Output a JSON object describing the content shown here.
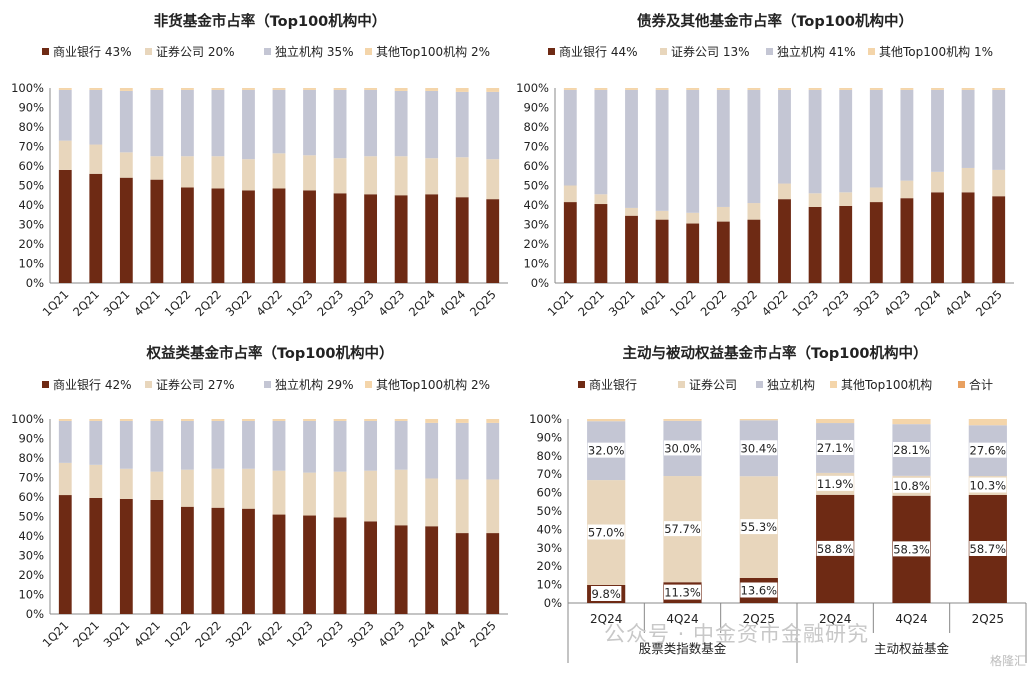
{
  "colors": {
    "commercial_bank": "#6e2a14",
    "securities": "#e8d6bc",
    "independent": "#c4c6d4",
    "other": "#f4d5aa",
    "total": "#e8a060"
  },
  "chart_data": [
    {
      "type": "bar",
      "stacked": true,
      "title": "非货基金市占率（Top100机构中）",
      "legend": [
        "商业银行 43%",
        "证券公司 20%",
        "独立机构 35%",
        "其他Top100机构 2%"
      ],
      "categories": [
        "1Q21",
        "2Q21",
        "3Q21",
        "4Q21",
        "1Q22",
        "2Q22",
        "3Q22",
        "4Q22",
        "1Q23",
        "2Q23",
        "3Q23",
        "4Q23",
        "2Q24",
        "4Q24",
        "2Q25"
      ],
      "yticks": [
        "0%",
        "10%",
        "20%",
        "30%",
        "40%",
        "50%",
        "60%",
        "70%",
        "80%",
        "90%",
        "100%"
      ],
      "ylim": [
        0,
        100
      ],
      "series": [
        {
          "name": "商业银行",
          "values": [
            58,
            56,
            54,
            53,
            49,
            48.5,
            47.5,
            48.5,
            47.5,
            46,
            45.5,
            45,
            45.5,
            44,
            43
          ]
        },
        {
          "name": "证券公司",
          "values": [
            15,
            15,
            13,
            12,
            16,
            16.5,
            16,
            18,
            18,
            18,
            19.5,
            20,
            18.5,
            20.5,
            20.5
          ]
        },
        {
          "name": "独立机构",
          "values": [
            26,
            28,
            31.5,
            34,
            34,
            34,
            35.5,
            32.5,
            33.5,
            35,
            34,
            33.5,
            34.5,
            33.5,
            34.5
          ]
        },
        {
          "name": "其他Top100机构",
          "values": [
            1,
            1,
            1.5,
            1,
            1,
            1,
            1,
            1,
            1,
            1,
            1,
            1.5,
            1.5,
            2,
            2
          ]
        }
      ]
    },
    {
      "type": "bar",
      "stacked": true,
      "title": "债券及其他基金市占率（Top100机构中）",
      "legend": [
        "商业银行 44%",
        "证券公司 13%",
        "独立机构 41%",
        "其他Top100机构 1%"
      ],
      "categories": [
        "1Q21",
        "2Q21",
        "3Q21",
        "4Q21",
        "1Q22",
        "2Q22",
        "3Q22",
        "4Q22",
        "1Q23",
        "2Q23",
        "3Q23",
        "4Q23",
        "2Q24",
        "4Q24",
        "2Q25"
      ],
      "yticks": [
        "0%",
        "10%",
        "20%",
        "30%",
        "40%",
        "50%",
        "60%",
        "70%",
        "80%",
        "90%",
        "100%"
      ],
      "ylim": [
        0,
        100
      ],
      "series": [
        {
          "name": "商业银行",
          "values": [
            41.5,
            40.5,
            34.5,
            32.5,
            30.5,
            31.5,
            32.5,
            43,
            39,
            39.5,
            41.5,
            43.5,
            46.5,
            46.5,
            44.5
          ]
        },
        {
          "name": "证券公司",
          "values": [
            8.5,
            5,
            4,
            4.5,
            5.5,
            7.5,
            8.5,
            8,
            7,
            7,
            7.5,
            9,
            10.5,
            12.5,
            13.5
          ]
        },
        {
          "name": "独立机构",
          "values": [
            49,
            53.5,
            60.5,
            62,
            63,
            60,
            58,
            48,
            53,
            52.5,
            50,
            46.5,
            42,
            40,
            41
          ]
        },
        {
          "name": "其他Top100机构",
          "values": [
            1,
            1,
            1,
            1,
            1,
            1,
            1,
            1,
            1,
            1,
            1,
            1,
            1,
            1,
            1
          ]
        }
      ]
    },
    {
      "type": "bar",
      "stacked": true,
      "title": "权益类基金市占率（Top100机构中）",
      "legend": [
        "商业银行 42%",
        "证券公司 27%",
        "独立机构 29%",
        "其他Top100机构 2%"
      ],
      "categories": [
        "1Q21",
        "2Q21",
        "3Q21",
        "4Q21",
        "1Q22",
        "2Q22",
        "3Q22",
        "4Q22",
        "1Q23",
        "2Q23",
        "3Q23",
        "4Q23",
        "2Q24",
        "4Q24",
        "2Q25"
      ],
      "yticks": [
        "0%",
        "10%",
        "20%",
        "30%",
        "40%",
        "50%",
        "60%",
        "70%",
        "80%",
        "90%",
        "100%"
      ],
      "ylim": [
        0,
        100
      ],
      "series": [
        {
          "name": "商业银行",
          "values": [
            61,
            59.5,
            59,
            58.5,
            55,
            54.5,
            54,
            51,
            50.5,
            49.5,
            47.5,
            45.5,
            45,
            41.5,
            41.5
          ]
        },
        {
          "name": "证券公司",
          "values": [
            16.5,
            17,
            15.5,
            14.5,
            19,
            20,
            20.5,
            22.5,
            22,
            23.5,
            26,
            28.5,
            24.5,
            27.5,
            27.5
          ]
        },
        {
          "name": "独立机构",
          "values": [
            21.5,
            22.5,
            24.5,
            26,
            25,
            24.5,
            24.5,
            25.5,
            26.5,
            26,
            25.5,
            25,
            28.5,
            29,
            29
          ]
        },
        {
          "name": "其他Top100机构",
          "values": [
            1,
            1,
            1,
            1,
            1,
            1,
            1,
            1,
            1,
            1,
            1,
            1,
            2,
            2,
            2
          ]
        }
      ]
    },
    {
      "type": "bar",
      "stacked": true,
      "title": "主动与被动权益基金市占率（Top100机构中）",
      "legend": [
        "商业银行",
        "证券公司",
        "独立机构",
        "其他Top100机构",
        "合计"
      ],
      "categories": [
        "2Q24",
        "4Q24",
        "2Q25",
        "2Q24",
        "4Q24",
        "2Q25"
      ],
      "groups": [
        {
          "label": "股票类指数基金",
          "span": 3
        },
        {
          "label": "主动权益基金",
          "span": 3
        }
      ],
      "yticks": [
        "0%",
        "10%",
        "20%",
        "30%",
        "40%",
        "50%",
        "60%",
        "70%",
        "80%",
        "90%",
        "100%"
      ],
      "ylim": [
        0,
        100
      ],
      "series": [
        {
          "name": "商业银行",
          "values": [
            9.8,
            11.3,
            13.6,
            58.8,
            58.3,
            58.7
          ],
          "labels": [
            "9.8%",
            "11.3%",
            "13.6%",
            "58.8%",
            "58.3%",
            "58.7%"
          ]
        },
        {
          "name": "证券公司",
          "values": [
            57.0,
            57.7,
            55.3,
            11.9,
            10.8,
            10.3
          ],
          "labels": [
            "57.0%",
            "57.7%",
            "55.3%",
            "11.9%",
            "10.8%",
            "10.3%"
          ]
        },
        {
          "name": "独立机构",
          "values": [
            32.0,
            30.0,
            30.4,
            27.1,
            28.1,
            27.6
          ],
          "labels": [
            "32.0%",
            "30.0%",
            "30.4%",
            "27.1%",
            "28.1%",
            "27.6%"
          ]
        },
        {
          "name": "其他Top100机构",
          "values": [
            1.2,
            1.0,
            0.7,
            2.2,
            2.8,
            3.4
          ]
        }
      ]
    }
  ],
  "watermark": {
    "main": "公众号 · 中金资市金融研究",
    "corner": "格隆汇"
  }
}
